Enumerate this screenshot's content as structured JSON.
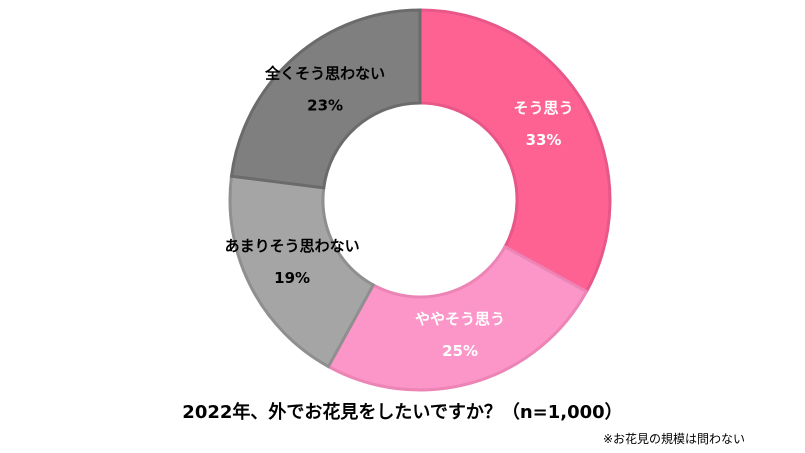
{
  "chart_data": {
    "type": "pie",
    "donut": true,
    "start_angle_deg": 0,
    "direction": "clockwise",
    "title": "2022年、外でお花見をしたいですか？（n=1,000）",
    "note": "※お花見の規模は問わない",
    "slices": [
      {
        "label": "そう思う",
        "value": 33,
        "value_label": "33%",
        "color": "#fd6292",
        "label_color": "#ffffff"
      },
      {
        "label": "ややそう思う",
        "value": 25,
        "value_label": "25%",
        "color": "#fd96c8",
        "label_color": "#ffffff"
      },
      {
        "label": "あまりそう思わない",
        "value": 19,
        "value_label": "19%",
        "color": "#a5a5a5",
        "label_color": "#000000"
      },
      {
        "label": "全くそう思わない",
        "value": 23,
        "value_label": "23%",
        "color": "#7f7f7f",
        "label_color": "#000000"
      }
    ],
    "stroke_colors": [
      "#e8578a",
      "#ec84b5",
      "#8f8f8f",
      "#6b6b6b"
    ],
    "legend": "none"
  }
}
